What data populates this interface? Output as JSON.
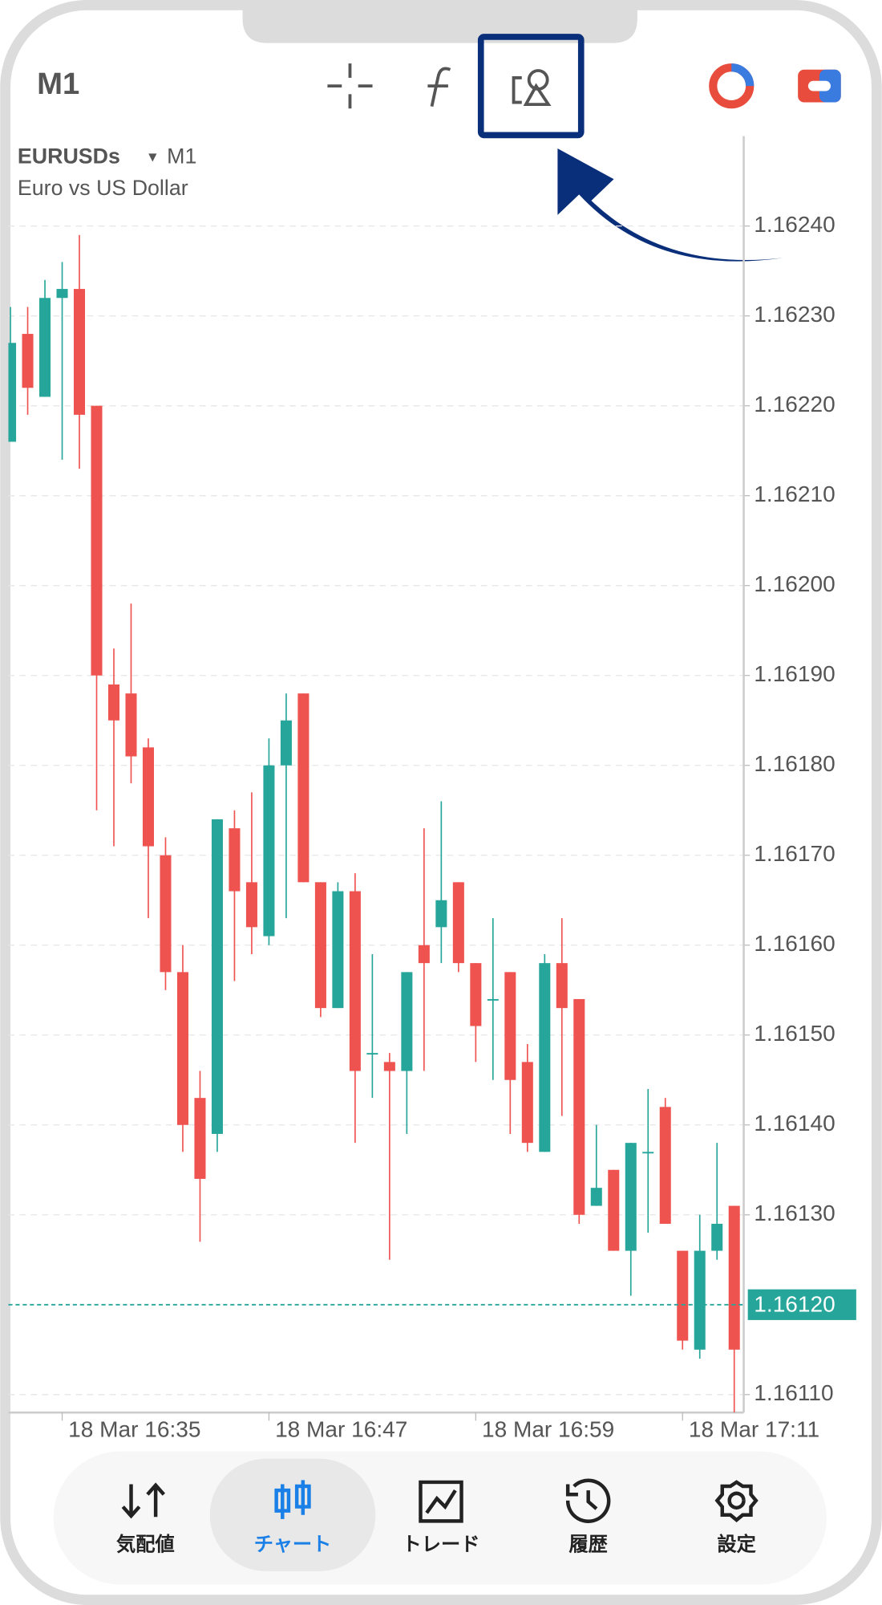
{
  "top_bar": {
    "timeframe": "M1"
  },
  "chart_data": {
    "type": "candlestick",
    "symbol": "EURUSDs",
    "timeframe": "M1",
    "description": "Euro vs US Dollar",
    "categories": [
      null,
      null,
      null,
      "18 Mar 16:35",
      null,
      null,
      null,
      null,
      null,
      null,
      null,
      null,
      null,
      null,
      null,
      "18 Mar 16:47",
      null,
      null,
      null,
      null,
      null,
      null,
      null,
      null,
      null,
      null,
      null,
      "18 Mar 16:59",
      null,
      null,
      null,
      null,
      null,
      null,
      null,
      null,
      null,
      null,
      null,
      "18 Mar 17:11",
      null,
      null,
      null
    ],
    "open": [
      1.16216,
      1.16228,
      1.16221,
      1.16232,
      1.16233,
      1.1622,
      1.16189,
      1.16188,
      1.16182,
      1.1617,
      1.16157,
      1.16143,
      1.16139,
      1.16173,
      1.16167,
      1.16161,
      1.1618,
      1.16188,
      1.16167,
      1.16153,
      1.16166,
      1.16148,
      1.16147,
      1.16146,
      1.1616,
      1.16162,
      1.16167,
      1.16158,
      1.16154,
      1.16157,
      1.16147,
      1.16137,
      1.16158,
      1.16154,
      1.16131,
      1.16135,
      1.16126,
      1.16137,
      1.16142,
      1.16126,
      1.16115,
      1.16126,
      1.16131
    ],
    "high": [
      1.16231,
      1.16231,
      1.16234,
      1.16236,
      1.16239,
      1.1622,
      1.16193,
      1.16198,
      1.16183,
      1.16172,
      1.1616,
      1.16146,
      1.16174,
      1.16175,
      1.16177,
      1.16183,
      1.16188,
      1.16188,
      1.16167,
      1.16167,
      1.16168,
      1.16159,
      1.16148,
      1.16157,
      1.16173,
      1.16176,
      1.16167,
      1.16158,
      1.16163,
      1.16157,
      1.16149,
      1.16159,
      1.16163,
      1.16154,
      1.1614,
      1.16135,
      1.16138,
      1.16144,
      1.16143,
      1.16126,
      1.1613,
      1.16138,
      1.16131
    ],
    "low": [
      1.16216,
      1.16219,
      1.16221,
      1.16214,
      1.16213,
      1.16175,
      1.16171,
      1.16178,
      1.16163,
      1.16155,
      1.16137,
      1.16127,
      1.16137,
      1.16156,
      1.16159,
      1.1616,
      1.16163,
      1.16167,
      1.16152,
      1.16153,
      1.16138,
      1.16143,
      1.16125,
      1.16139,
      1.16146,
      1.16158,
      1.16157,
      1.16147,
      1.16145,
      1.16139,
      1.16137,
      1.16137,
      1.16141,
      1.16129,
      1.16131,
      1.16126,
      1.16121,
      1.16128,
      1.16129,
      1.16115,
      1.16114,
      1.16125,
      1.16108
    ],
    "close": [
      1.16227,
      1.16222,
      1.16232,
      1.16233,
      1.16219,
      1.1619,
      1.16185,
      1.16181,
      1.16171,
      1.16157,
      1.1614,
      1.16134,
      1.16174,
      1.16166,
      1.16162,
      1.1618,
      1.16185,
      1.16167,
      1.16153,
      1.16166,
      1.16146,
      1.16148,
      1.16146,
      1.16157,
      1.16158,
      1.16165,
      1.16158,
      1.16151,
      1.16154,
      1.16145,
      1.16138,
      1.16158,
      1.16153,
      1.1613,
      1.16133,
      1.16126,
      1.16138,
      1.16137,
      1.16129,
      1.16116,
      1.16126,
      1.16129,
      1.16115
    ],
    "up_color": "#26a69a",
    "down_color": "#ef5350",
    "ylim": [
      1.16108,
      1.1625
    ],
    "yticks": [
      {
        "value": 1.1624,
        "label": "1.16240"
      },
      {
        "value": 1.1623,
        "label": "1.16230"
      },
      {
        "value": 1.1622,
        "label": "1.16220"
      },
      {
        "value": 1.1621,
        "label": "1.16210"
      },
      {
        "value": 1.162,
        "label": "1.16200"
      },
      {
        "value": 1.1619,
        "label": "1.16190"
      },
      {
        "value": 1.1618,
        "label": "1.16180"
      },
      {
        "value": 1.1617,
        "label": "1.16170"
      },
      {
        "value": 1.1616,
        "label": "1.16160"
      },
      {
        "value": 1.1615,
        "label": "1.16150"
      },
      {
        "value": 1.1614,
        "label": "1.16140"
      },
      {
        "value": 1.1613,
        "label": "1.16130"
      },
      {
        "value": 1.1611,
        "label": "1.16110"
      }
    ],
    "current_price": {
      "value": 1.1612,
      "label": "1.16120"
    },
    "grid": true
  },
  "bottom_nav": {
    "items": [
      "気配値",
      "チャート",
      "トレード",
      "履歴",
      "設定"
    ],
    "active": 1
  }
}
